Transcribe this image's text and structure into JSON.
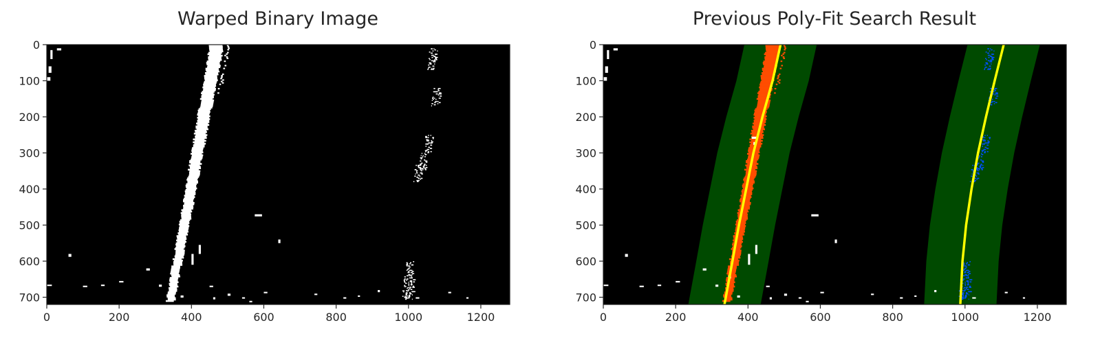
{
  "chart_data": [
    {
      "type": "image",
      "title": "Warped Binary Image",
      "xlim": [
        0,
        1280
      ],
      "ylim": [
        720,
        0
      ],
      "x_ticks": [
        0,
        200,
        400,
        600,
        800,
        1000,
        1200
      ],
      "y_ticks": [
        0,
        100,
        200,
        300,
        400,
        500,
        600,
        700
      ],
      "x_tick_labels": [
        "0",
        "200",
        "400",
        "600",
        "800",
        "1000",
        "1200"
      ],
      "y_tick_labels": [
        "0",
        "100",
        "200",
        "300",
        "400",
        "500",
        "600",
        "700"
      ],
      "background_color": "#000000",
      "pixel_color": "#ffffff"
    },
    {
      "type": "image",
      "title": "Previous Poly-Fit Search Result",
      "xlim": [
        0,
        1280
      ],
      "ylim": [
        720,
        0
      ],
      "x_ticks": [
        0,
        200,
        400,
        600,
        800,
        1000,
        1200
      ],
      "y_ticks": [
        0,
        100,
        200,
        300,
        400,
        500,
        600,
        700
      ],
      "x_tick_labels": [
        "0",
        "200",
        "400",
        "600",
        "800",
        "1000",
        "1200"
      ],
      "y_tick_labels": [
        "0",
        "100",
        "200",
        "300",
        "400",
        "500",
        "600",
        "700"
      ],
      "background_color": "#000000",
      "search_margin": 100,
      "colors": {
        "search_window": "#004a00",
        "left_lane_pixels": "#ff4d00",
        "right_lane_pixels": "#0050ff",
        "fit_line": "#ffff00",
        "other_pixels": "#ffffff"
      },
      "left_fit": {
        "y": [
          0,
          100,
          200,
          300,
          400,
          500,
          600,
          720
        ],
        "x": [
          490,
          468,
          440,
          415,
          395,
          375,
          357,
          335
        ]
      },
      "right_fit": {
        "y": [
          0,
          100,
          200,
          300,
          400,
          500,
          600,
          720
        ],
        "x": [
          1107,
          1082,
          1058,
          1036,
          1018,
          1003,
          993,
          987
        ]
      }
    }
  ]
}
